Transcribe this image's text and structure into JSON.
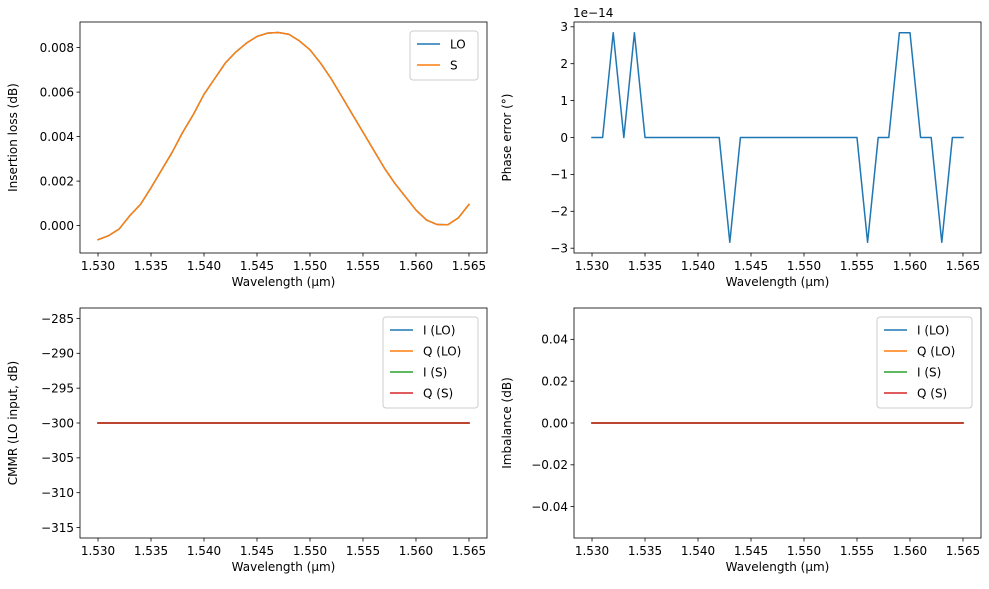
{
  "colors": {
    "C0": "#1f77b4",
    "C1": "#ff7f0e",
    "C2": "#2ca02c",
    "C3": "#d62728"
  },
  "chart_data": [
    {
      "type": "line",
      "xlabel": "Wavelength (µm)",
      "ylabel": "Insertion loss (dB)",
      "xlim": [
        1.5283,
        1.5667
      ],
      "ylim": [
        -0.00123,
        0.00915
      ],
      "xticks": [
        1.53,
        1.535,
        1.54,
        1.545,
        1.55,
        1.555,
        1.56,
        1.565
      ],
      "xtick_labels": [
        "1.530",
        "1.535",
        "1.540",
        "1.545",
        "1.550",
        "1.555",
        "1.560",
        "1.565"
      ],
      "yticks": [
        0.0,
        0.002,
        0.004,
        0.006,
        0.008
      ],
      "ytick_labels": [
        "0.000",
        "0.002",
        "0.004",
        "0.006",
        "0.008"
      ],
      "legend": "top-right",
      "grid": false,
      "x": [
        1.53,
        1.531,
        1.532,
        1.533,
        1.534,
        1.535,
        1.536,
        1.537,
        1.538,
        1.539,
        1.54,
        1.541,
        1.542,
        1.543,
        1.544,
        1.545,
        1.546,
        1.547,
        1.548,
        1.549,
        1.55,
        1.551,
        1.552,
        1.553,
        1.554,
        1.555,
        1.556,
        1.557,
        1.558,
        1.559,
        1.56,
        1.561,
        1.562,
        1.563,
        1.564,
        1.565
      ],
      "series": [
        {
          "name": "LO",
          "color": "#1f77b4",
          "values": [
            -0.00063,
            -0.00045,
            -0.00015,
            0.00045,
            0.00095,
            0.0017,
            0.0025,
            0.0033,
            0.0042,
            0.005,
            0.0059,
            0.0066,
            0.0073,
            0.0078,
            0.0082,
            0.0085,
            0.00865,
            0.00868,
            0.0086,
            0.0083,
            0.0079,
            0.0073,
            0.0066,
            0.0058,
            0.005,
            0.0042,
            0.0034,
            0.0026,
            0.0019,
            0.0013,
            0.0007,
            0.00025,
            5e-05,
            4e-05,
            0.00035,
            0.00095
          ]
        },
        {
          "name": "S",
          "color": "#ff7f0e",
          "values": [
            -0.00063,
            -0.00045,
            -0.00015,
            0.00045,
            0.00095,
            0.0017,
            0.0025,
            0.0033,
            0.0042,
            0.005,
            0.0059,
            0.0066,
            0.0073,
            0.0078,
            0.0082,
            0.0085,
            0.00865,
            0.00868,
            0.0086,
            0.0083,
            0.0079,
            0.0073,
            0.0066,
            0.0058,
            0.005,
            0.0042,
            0.0034,
            0.0026,
            0.0019,
            0.0013,
            0.0007,
            0.00025,
            5e-05,
            4e-05,
            0.00035,
            0.00095
          ]
        }
      ]
    },
    {
      "type": "line",
      "xlabel": "Wavelength (µm)",
      "ylabel": "Phase error (°)",
      "offset_text": "1e−14",
      "xlim": [
        1.5283,
        1.5667
      ],
      "ylim": [
        -3.13,
        3.13
      ],
      "xticks": [
        1.53,
        1.535,
        1.54,
        1.545,
        1.55,
        1.555,
        1.56,
        1.565
      ],
      "xtick_labels": [
        "1.530",
        "1.535",
        "1.540",
        "1.545",
        "1.550",
        "1.555",
        "1.560",
        "1.565"
      ],
      "yticks": [
        -3,
        -2,
        -1,
        0,
        1,
        2,
        3
      ],
      "ytick_labels": [
        "−3",
        "−2",
        "−1",
        "0",
        "1",
        "2",
        "3"
      ],
      "legend": "none",
      "grid": false,
      "x": [
        1.53,
        1.531,
        1.532,
        1.533,
        1.534,
        1.535,
        1.536,
        1.537,
        1.538,
        1.539,
        1.54,
        1.541,
        1.542,
        1.543,
        1.544,
        1.545,
        1.546,
        1.547,
        1.548,
        1.549,
        1.55,
        1.551,
        1.552,
        1.553,
        1.554,
        1.555,
        1.556,
        1.557,
        1.558,
        1.559,
        1.56,
        1.561,
        1.562,
        1.563,
        1.564,
        1.565
      ],
      "series": [
        {
          "color": "#1f77b4",
          "values": [
            0,
            0,
            2.84,
            0,
            2.84,
            0,
            0,
            0,
            0,
            0,
            0,
            0,
            0,
            -2.84,
            0,
            0,
            0,
            0,
            0,
            0,
            0,
            0,
            0,
            0,
            0,
            0,
            -2.84,
            0,
            0,
            2.84,
            2.84,
            0,
            0,
            -2.84,
            0,
            0
          ]
        }
      ]
    },
    {
      "type": "line",
      "xlabel": "Wavelength (µm)",
      "ylabel": "CMMR (LO input, dB)",
      "xlim": [
        1.5283,
        1.5667
      ],
      "ylim": [
        -316.5,
        -283.5
      ],
      "xticks": [
        1.53,
        1.535,
        1.54,
        1.545,
        1.55,
        1.555,
        1.56,
        1.565
      ],
      "xtick_labels": [
        "1.530",
        "1.535",
        "1.540",
        "1.545",
        "1.550",
        "1.555",
        "1.560",
        "1.565"
      ],
      "yticks": [
        -315,
        -310,
        -305,
        -300,
        -295,
        -290,
        -285
      ],
      "ytick_labels": [
        "−315",
        "−310",
        "−305",
        "−300",
        "−295",
        "−290",
        "−285"
      ],
      "legend": "top-right",
      "grid": false,
      "x": [
        1.53,
        1.565
      ],
      "series": [
        {
          "name": "I (LO)",
          "color": "#1f77b4",
          "values": [
            -300,
            -300
          ]
        },
        {
          "name": "Q (LO)",
          "color": "#ff7f0e",
          "values": [
            -300,
            -300
          ]
        },
        {
          "name": "I (S)",
          "color": "#2ca02c",
          "values": [
            -300,
            -300
          ]
        },
        {
          "name": "Q (S)",
          "color": "#d62728",
          "values": [
            -300,
            -300
          ]
        }
      ]
    },
    {
      "type": "line",
      "xlabel": "Wavelength (µm)",
      "ylabel": "Imbalance (dB)",
      "xlim": [
        1.5283,
        1.5667
      ],
      "ylim": [
        -0.055,
        0.055
      ],
      "xticks": [
        1.53,
        1.535,
        1.54,
        1.545,
        1.55,
        1.555,
        1.56,
        1.565
      ],
      "xtick_labels": [
        "1.530",
        "1.535",
        "1.540",
        "1.545",
        "1.550",
        "1.555",
        "1.560",
        "1.565"
      ],
      "yticks": [
        -0.04,
        -0.02,
        0.0,
        0.02,
        0.04
      ],
      "ytick_labels": [
        "−0.04",
        "−0.02",
        "0.00",
        "0.02",
        "0.04"
      ],
      "legend": "top-right",
      "grid": false,
      "x": [
        1.53,
        1.565
      ],
      "series": [
        {
          "name": "I (LO)",
          "color": "#1f77b4",
          "values": [
            0,
            0
          ]
        },
        {
          "name": "Q (LO)",
          "color": "#ff7f0e",
          "values": [
            0,
            0
          ]
        },
        {
          "name": "I (S)",
          "color": "#2ca02c",
          "values": [
            0,
            0
          ]
        },
        {
          "name": "Q (S)",
          "color": "#d62728",
          "values": [
            0,
            0
          ]
        }
      ]
    }
  ]
}
